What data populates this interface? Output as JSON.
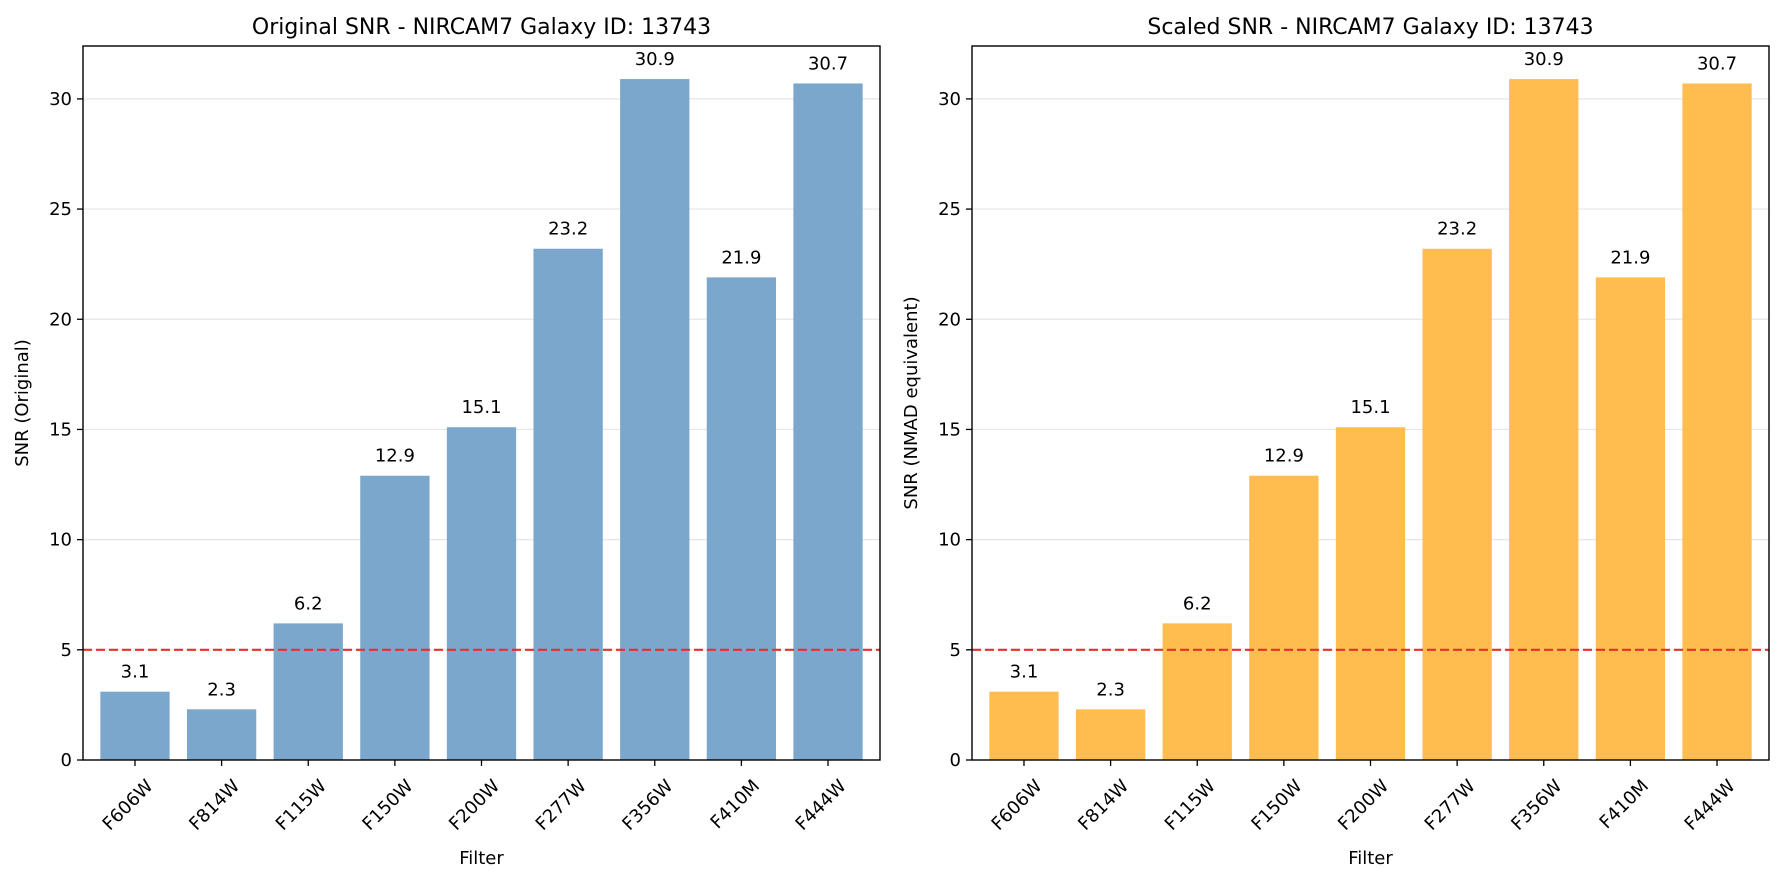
{
  "chart_data": [
    {
      "type": "bar",
      "title": "Original SNR - NIRCAM7 Galaxy ID: 13743",
      "xlabel": "Filter",
      "ylabel": "SNR (Original)",
      "categories": [
        "F606W",
        "F814W",
        "F115W",
        "F150W",
        "F200W",
        "F277W",
        "F356W",
        "F410M",
        "F444W"
      ],
      "values": [
        3.1,
        2.3,
        6.2,
        12.9,
        15.1,
        23.2,
        30.9,
        21.9,
        30.7
      ],
      "data_labels": [
        "3.1",
        "2.3",
        "6.2",
        "12.9",
        "15.1",
        "23.2",
        "30.9",
        "21.9",
        "30.7"
      ],
      "ylim": [
        0,
        32.4
      ],
      "yticks": [
        0,
        5,
        10,
        15,
        20,
        25,
        30
      ],
      "threshold": 5,
      "threshold_color": "#e8302a",
      "bar_color": "#7ba7cc",
      "grid": "y"
    },
    {
      "type": "bar",
      "title": "Scaled SNR - NIRCAM7 Galaxy ID: 13743",
      "xlabel": "Filter",
      "ylabel": "SNR (NMAD equivalent)",
      "categories": [
        "F606W",
        "F814W",
        "F115W",
        "F150W",
        "F200W",
        "F277W",
        "F356W",
        "F410M",
        "F444W"
      ],
      "values": [
        3.1,
        2.3,
        6.2,
        12.9,
        15.1,
        23.2,
        30.9,
        21.9,
        30.7
      ],
      "data_labels": [
        "3.1",
        "2.3",
        "6.2",
        "12.9",
        "15.1",
        "23.2",
        "30.9",
        "21.9",
        "30.7"
      ],
      "ylim": [
        0,
        32.4
      ],
      "yticks": [
        0,
        5,
        10,
        15,
        20,
        25,
        30
      ],
      "threshold": 5,
      "threshold_color": "#e8302a",
      "bar_color": "#ffbd4f",
      "grid": "y"
    }
  ]
}
